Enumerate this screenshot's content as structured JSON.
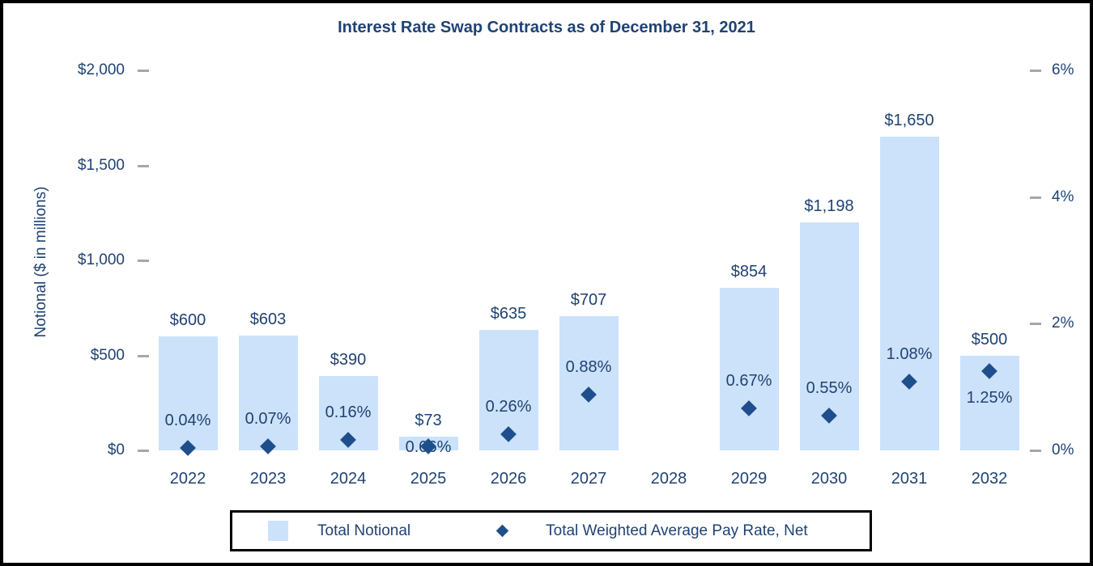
{
  "colors": {
    "bar_fill": "#CCE2FA",
    "diamond": "#1F4E8C",
    "text": "#1F4273",
    "tick": "#A6A6A6",
    "legend_border": "#000000",
    "figure_border": "#000000"
  },
  "chart_data": {
    "type": "bar",
    "subtype": "combo-bar-scatter",
    "title": "Interest Rate Swap Contracts as of December 31, 2021",
    "categories": [
      "2022",
      "2023",
      "2024",
      "2025",
      "2026",
      "2027",
      "2028",
      "2029",
      "2030",
      "2031",
      "2032"
    ],
    "series": [
      {
        "name": "Total Notional",
        "type": "bar",
        "axis": "left",
        "values": [
          600,
          603,
          390,
          73,
          635,
          707,
          null,
          854,
          1198,
          1650,
          500
        ],
        "labels": [
          "$600",
          "$603",
          "$390",
          "$73",
          "$635",
          "$707",
          null,
          "$854",
          "$1,198",
          "$1,650",
          "$500"
        ]
      },
      {
        "name": "Total Weighted Average Pay Rate, Net",
        "type": "scatter",
        "marker": "diamond",
        "axis": "right",
        "values": [
          0.04,
          0.07,
          0.16,
          0.06,
          0.26,
          0.88,
          null,
          0.67,
          0.55,
          1.08,
          1.25
        ],
        "labels": [
          "0.04%",
          "0.07%",
          "0.16%",
          "0.06%",
          "0.26%",
          "0.88%",
          null,
          "0.67%",
          "0.55%",
          "1.08%",
          "1.25%"
        ],
        "label_positions": [
          "above",
          "above",
          "above",
          "on",
          "above",
          "above",
          null,
          "above",
          "above",
          "above",
          "below"
        ]
      }
    ],
    "left_axis": {
      "title": "Notional ($ in millions)",
      "min": 0,
      "max": 2000,
      "tick_values": [
        0,
        500,
        1000,
        1500,
        2000
      ],
      "tick_labels": [
        "$0",
        "$500",
        "$1,000",
        "$1,500",
        "$2,000"
      ]
    },
    "right_axis": {
      "min": 0,
      "max": 6,
      "tick_values": [
        0,
        2,
        4,
        6
      ],
      "tick_labels": [
        "0%",
        "2%",
        "4%",
        "6%"
      ]
    },
    "legend": {
      "position": "bottom",
      "items": [
        {
          "label": "Total Notional",
          "marker": "square"
        },
        {
          "label": "Total Weighted Average Pay Rate, Net",
          "marker": "diamond"
        }
      ]
    },
    "grid": false
  }
}
